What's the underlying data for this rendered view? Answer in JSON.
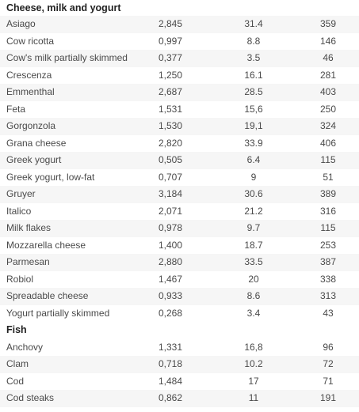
{
  "sections": [
    {
      "title": "Cheese, milk and yogurt",
      "rows": [
        {
          "name": "Asiago",
          "a": "2,845",
          "b": "31.4",
          "c": "359"
        },
        {
          "name": "Cow ricotta",
          "a": "0,997",
          "b": "8.8",
          "c": "146"
        },
        {
          "name": "Cow's milk partially skimmed",
          "a": "0,377",
          "b": "3.5",
          "c": "46"
        },
        {
          "name": "Crescenza",
          "a": "1,250",
          "b": "16.1",
          "c": "281"
        },
        {
          "name": "Emmenthal",
          "a": "2,687",
          "b": "28.5",
          "c": "403"
        },
        {
          "name": "Feta",
          "a": "1,531",
          "b": "15,6",
          "c": "250"
        },
        {
          "name": "Gorgonzola",
          "a": "1,530",
          "b": "19,1",
          "c": "324"
        },
        {
          "name": "Grana cheese",
          "a": "2,820",
          "b": "33.9",
          "c": "406"
        },
        {
          "name": "Greek yogurt",
          "a": "0,505",
          "b": "6.4",
          "c": "115"
        },
        {
          "name": "Greek yogurt, low-fat",
          "a": "0,707",
          "b": "9",
          "c": "51"
        },
        {
          "name": "Gruyer",
          "a": "3,184",
          "b": "30.6",
          "c": "389"
        },
        {
          "name": "Italico",
          "a": "2,071",
          "b": "21.2",
          "c": "316"
        },
        {
          "name": "Milk flakes",
          "a": "0,978",
          "b": "9.7",
          "c": "115"
        },
        {
          "name": "Mozzarella cheese",
          "a": "1,400",
          "b": "18.7",
          "c": "253"
        },
        {
          "name": "Parmesan",
          "a": "2,880",
          "b": "33.5",
          "c": "387"
        },
        {
          "name": "Robiol",
          "a": "1,467",
          "b": "20",
          "c": "338"
        },
        {
          "name": "Spreadable cheese",
          "a": "0,933",
          "b": "8.6",
          "c": "313"
        },
        {
          "name": "Yogurt partially skimmed",
          "a": "0,268",
          "b": "3.4",
          "c": "43"
        }
      ]
    },
    {
      "title": "Fish",
      "rows": [
        {
          "name": "Anchovy",
          "a": "1,331",
          "b": "16,8",
          "c": "96"
        },
        {
          "name": "Clam",
          "a": "0,718",
          "b": "10.2",
          "c": "72"
        },
        {
          "name": "Cod",
          "a": "1,484",
          "b": "17",
          "c": "71"
        },
        {
          "name": "Cod steaks",
          "a": "0,862",
          "b": "11",
          "c": "191"
        }
      ]
    }
  ],
  "colors": {
    "stripe": "#f6f6f6",
    "text": "#4a4a4a",
    "heading": "#222222"
  }
}
